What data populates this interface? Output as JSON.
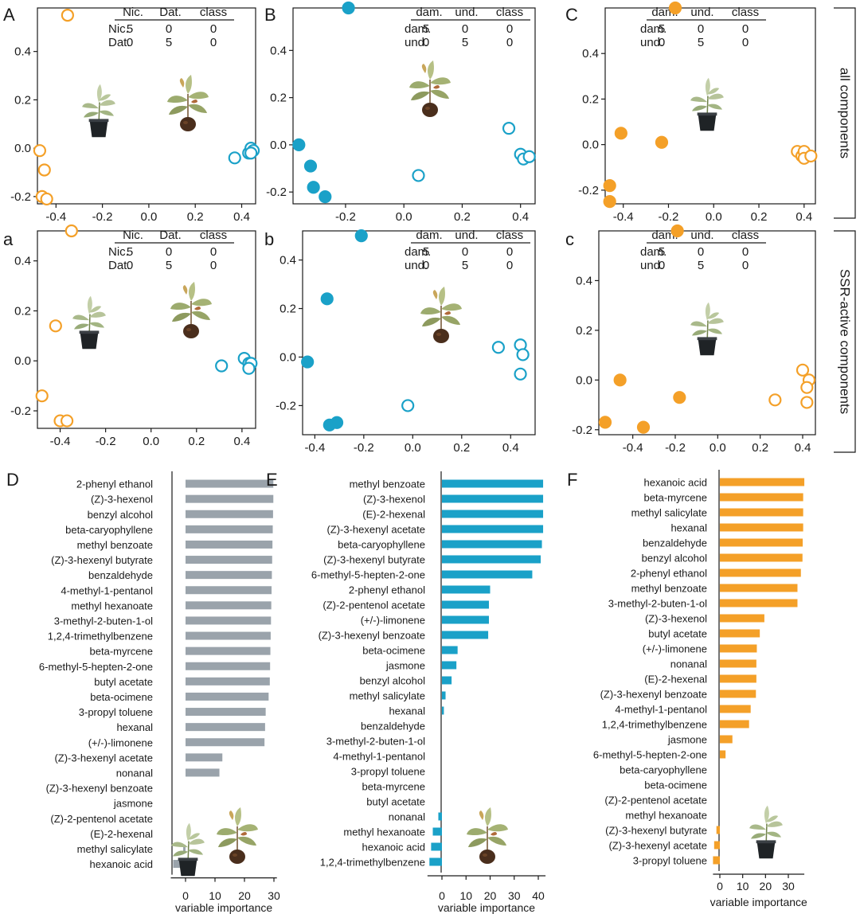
{
  "row_labels": [
    "all components",
    "SSR-active components"
  ],
  "colors": {
    "orange": "#f4a028",
    "blue": "#1aa1c8",
    "gray": "#9aa3ab",
    "axis": "#1a1a1a"
  },
  "chart_data": [
    {
      "id": "A",
      "type": "scatter",
      "letter": "A",
      "xlim": [
        -0.48,
        0.46
      ],
      "ylim": [
        -0.23,
        0.58
      ],
      "xticks": [
        -0.4,
        -0.2,
        0.0,
        0.2,
        0.4
      ],
      "yticks": [
        -0.2,
        0.0,
        0.2,
        0.4
      ],
      "xtick_labels": [
        "-0.4",
        "-0.2",
        "0.0",
        "0.2",
        "0.4"
      ],
      "ytick_labels": [
        "-0.2",
        "0.0",
        "0.2",
        "0.4"
      ],
      "series": [
        {
          "color": "orange",
          "filled": false,
          "points": [
            [
              -0.35,
              0.55
            ],
            [
              -0.47,
              -0.01
            ],
            [
              -0.45,
              -0.09
            ],
            [
              -0.46,
              -0.2
            ],
            [
              -0.44,
              -0.21
            ]
          ]
        },
        {
          "color": "blue",
          "filled": false,
          "points": [
            [
              0.37,
              -0.04
            ],
            [
              0.43,
              -0.02
            ],
            [
              0.44,
              0.0
            ],
            [
              0.45,
              -0.01
            ],
            [
              0.44,
              -0.02
            ]
          ]
        }
      ],
      "confusion": {
        "header": [
          "Nic.",
          "Dat.",
          "class"
        ],
        "rows": [
          [
            "Nic.",
            "5",
            "0",
            "0"
          ],
          [
            "Dat.",
            "0",
            "5",
            "0"
          ]
        ]
      },
      "icons": [
        "potted-plant",
        "damaged-plant"
      ]
    },
    {
      "id": "B",
      "type": "scatter",
      "letter": "B",
      "xlim": [
        -0.38,
        0.45
      ],
      "ylim": [
        -0.25,
        0.58
      ],
      "xticks": [
        -0.2,
        0.0,
        0.2,
        0.4
      ],
      "yticks": [
        -0.2,
        0.0,
        0.2,
        0.4
      ],
      "xtick_labels": [
        "-0.2",
        "0.0",
        "0.2",
        "0.4"
      ],
      "ytick_labels": [
        "-0.2",
        "0.0",
        "0.2",
        "0.4"
      ],
      "series": [
        {
          "color": "blue",
          "filled": true,
          "points": [
            [
              -0.19,
              0.58
            ],
            [
              -0.36,
              0.0
            ],
            [
              -0.32,
              -0.09
            ],
            [
              -0.31,
              -0.18
            ],
            [
              -0.27,
              -0.22
            ]
          ]
        },
        {
          "color": "blue",
          "filled": false,
          "points": [
            [
              0.36,
              0.07
            ],
            [
              0.4,
              -0.04
            ],
            [
              0.41,
              -0.06
            ],
            [
              0.43,
              -0.05
            ],
            [
              0.05,
              -0.13
            ]
          ]
        }
      ],
      "confusion": {
        "header": [
          "dam.",
          "und.",
          "class"
        ],
        "rows": [
          [
            "dam.",
            "5",
            "0",
            "0"
          ],
          [
            "und.",
            "0",
            "5",
            "0"
          ]
        ]
      },
      "icons": [
        "damaged-plant"
      ]
    },
    {
      "id": "C",
      "type": "scatter",
      "letter": "C",
      "xlim": [
        -0.48,
        0.45
      ],
      "ylim": [
        -0.26,
        0.6
      ],
      "xticks": [
        -0.4,
        -0.2,
        0.0,
        0.2,
        0.4
      ],
      "yticks": [
        -0.2,
        0.0,
        0.2,
        0.4
      ],
      "xtick_labels": [
        "-0.4",
        "-0.2",
        "0.0",
        "0.2",
        "0.4"
      ],
      "ytick_labels": [
        "-0.2",
        "0.0",
        "0.2",
        "0.4"
      ],
      "series": [
        {
          "color": "orange",
          "filled": true,
          "points": [
            [
              -0.17,
              0.6
            ],
            [
              -0.41,
              0.05
            ],
            [
              -0.23,
              0.01
            ],
            [
              -0.46,
              -0.18
            ],
            [
              -0.46,
              -0.25
            ]
          ]
        },
        {
          "color": "orange",
          "filled": false,
          "points": [
            [
              0.37,
              -0.03
            ],
            [
              0.39,
              -0.05
            ],
            [
              0.4,
              -0.03
            ],
            [
              0.4,
              -0.06
            ],
            [
              0.43,
              -0.05
            ]
          ]
        }
      ],
      "confusion": {
        "header": [
          "dam.",
          "und.",
          "class"
        ],
        "rows": [
          [
            "dam.",
            "5",
            "0",
            "0"
          ],
          [
            "und.",
            "0",
            "5",
            "0"
          ]
        ]
      },
      "icons": [
        "potted-plant"
      ]
    },
    {
      "id": "a",
      "type": "scatter",
      "letter": "a",
      "xlim": [
        -0.5,
        0.46
      ],
      "ylim": [
        -0.27,
        0.52
      ],
      "xticks": [
        -0.4,
        -0.2,
        0.0,
        0.2,
        0.4
      ],
      "yticks": [
        -0.2,
        0.0,
        0.2,
        0.4
      ],
      "xtick_labels": [
        "-0.4",
        "-0.2",
        "0.0",
        "0.2",
        "0.4"
      ],
      "ytick_labels": [
        "-0.2",
        "0.0",
        "0.2",
        "0.4"
      ],
      "series": [
        {
          "color": "orange",
          "filled": false,
          "points": [
            [
              -0.35,
              0.52
            ],
            [
              -0.42,
              0.14
            ],
            [
              -0.48,
              -0.14
            ],
            [
              -0.4,
              -0.24
            ],
            [
              -0.37,
              -0.24
            ]
          ]
        },
        {
          "color": "blue",
          "filled": false,
          "points": [
            [
              0.31,
              -0.02
            ],
            [
              0.41,
              0.01
            ],
            [
              0.43,
              -0.01
            ],
            [
              0.44,
              -0.01
            ],
            [
              0.43,
              -0.03
            ]
          ]
        }
      ],
      "confusion": {
        "header": [
          "Nic.",
          "Dat.",
          "class"
        ],
        "rows": [
          [
            "Nic.",
            "5",
            "0",
            "0"
          ],
          [
            "Dat.",
            "0",
            "5",
            "0"
          ]
        ]
      },
      "icons": [
        "potted-plant",
        "damaged-plant"
      ]
    },
    {
      "id": "b",
      "type": "scatter",
      "letter": "b",
      "xlim": [
        -0.45,
        0.5
      ],
      "ylim": [
        -0.32,
        0.52
      ],
      "xticks": [
        -0.4,
        -0.2,
        0.0,
        0.2,
        0.4
      ],
      "yticks": [
        -0.2,
        0.0,
        0.2,
        0.4
      ],
      "xtick_labels": [
        "-0.4",
        "-0.2",
        "0.0",
        "0.2",
        "0.4"
      ],
      "ytick_labels": [
        "-0.2",
        "0.0",
        "0.2",
        "0.4"
      ],
      "series": [
        {
          "color": "blue",
          "filled": true,
          "points": [
            [
              -0.21,
              0.5
            ],
            [
              -0.35,
              0.24
            ],
            [
              -0.43,
              -0.02
            ],
            [
              -0.34,
              -0.28
            ],
            [
              -0.31,
              -0.27
            ]
          ]
        },
        {
          "color": "blue",
          "filled": false,
          "points": [
            [
              0.35,
              0.04
            ],
            [
              0.44,
              0.05
            ],
            [
              0.45,
              0.01
            ],
            [
              0.44,
              -0.07
            ],
            [
              -0.02,
              -0.2
            ]
          ]
        }
      ],
      "confusion": {
        "header": [
          "dam.",
          "und.",
          "class"
        ],
        "rows": [
          [
            "dam.",
            "5",
            "0",
            "0"
          ],
          [
            "und.",
            "0",
            "5",
            "0"
          ]
        ]
      },
      "icons": [
        "damaged-plant"
      ]
    },
    {
      "id": "c",
      "type": "scatter",
      "letter": "c",
      "xlim": [
        -0.56,
        0.46
      ],
      "ylim": [
        -0.22,
        0.6
      ],
      "xticks": [
        -0.4,
        -0.2,
        0.0,
        0.2,
        0.4
      ],
      "yticks": [
        -0.2,
        0.0,
        0.2,
        0.4
      ],
      "xtick_labels": [
        "-0.4",
        "-0.2",
        "0.0",
        "0.2",
        "0.4"
      ],
      "ytick_labels": [
        "-0.2",
        "0.0",
        "0.2",
        "0.4"
      ],
      "series": [
        {
          "color": "orange",
          "filled": true,
          "points": [
            [
              -0.19,
              0.6
            ],
            [
              -0.46,
              0.0
            ],
            [
              -0.18,
              -0.07
            ],
            [
              -0.53,
              -0.17
            ],
            [
              -0.35,
              -0.19
            ]
          ]
        },
        {
          "color": "orange",
          "filled": false,
          "points": [
            [
              0.27,
              -0.08
            ],
            [
              0.4,
              0.04
            ],
            [
              0.43,
              0.0
            ],
            [
              0.42,
              -0.03
            ],
            [
              0.42,
              -0.09
            ]
          ]
        }
      ],
      "confusion": {
        "header": [
          "dam.",
          "und.",
          "class"
        ],
        "rows": [
          [
            "dam.",
            "5",
            "0",
            "0"
          ],
          [
            "und.",
            "0",
            "5",
            "0"
          ]
        ]
      },
      "icons": [
        "potted-plant"
      ]
    },
    {
      "id": "D",
      "type": "bar",
      "letter": "D",
      "color": "gray",
      "xlabel": "variable importance",
      "xlim": [
        -5,
        31
      ],
      "xticks": [
        0,
        10,
        20,
        30
      ],
      "xtick_labels": [
        "0",
        "10",
        "20",
        "30"
      ],
      "categories": [
        "2-phenyl ethanol",
        "(Z)-3-hexenol",
        "benzyl alcohol",
        "beta-caryophyllene",
        "methyl benzoate",
        "(Z)-3-hexenyl butyrate",
        "benzaldehyde",
        "4-methyl-1-pentanol",
        "methyl hexanoate",
        "3-methyl-2-buten-1-ol",
        "1,2,4-trimethylbenzene",
        "beta-myrcene",
        "6-methyl-5-hepten-2-one",
        "butyl acetate",
        "beta-ocimene",
        "3-propyl toluene",
        "hexanal",
        "(+/-)-limonene",
        "(Z)-3-hexenyl acetate",
        "nonanal",
        "(Z)-3-hexenyl benzoate",
        "jasmone",
        "(Z)-2-pentenol acetate",
        "(E)-2-hexenal",
        "methyl salicylate",
        "hexanoic acid"
      ],
      "values": [
        29.8,
        29.8,
        29.7,
        29.6,
        29.5,
        29.4,
        29.3,
        29.2,
        29.1,
        29.0,
        28.9,
        28.8,
        28.7,
        28.6,
        28.2,
        27.2,
        27.0,
        26.8,
        12.5,
        11.5,
        0,
        0,
        0,
        0,
        -0.8,
        -4.2
      ],
      "icons": [
        "potted-plant",
        "damaged-plant"
      ]
    },
    {
      "id": "E",
      "type": "bar",
      "letter": "E",
      "color": "blue",
      "xlabel": "variable importance",
      "xlim": [
        -6,
        43
      ],
      "xticks": [
        0,
        10,
        20,
        30,
        40
      ],
      "xtick_labels": [
        "0",
        "10",
        "20",
        "30",
        "40"
      ],
      "categories": [
        "methyl benzoate",
        "(Z)-3-hexenol",
        "(E)-2-hexenal",
        "(Z)-3-hexenyl acetate",
        "beta-caryophyllene",
        "(Z)-3-hexenyl butyrate",
        "6-methyl-5-hepten-2-one",
        "2-phenyl ethanol",
        "(Z)-2-pentenol acetate",
        "(+/-)-limonene",
        "(Z)-3-hexenyl benzoate",
        "beta-ocimene",
        "jasmone",
        "benzyl alcohol",
        "methyl salicylate",
        "hexanal",
        "benzaldehyde",
        "3-methyl-2-buten-1-ol",
        "4-methyl-1-pentanol",
        "3-propyl toluene",
        "beta-myrcene",
        "butyl acetate",
        "nonanal",
        "methyl hexanoate",
        "hexanoic acid",
        "1,2,4-trimethylbenzene"
      ],
      "values": [
        42,
        42,
        42,
        42,
        41.5,
        41,
        37.5,
        20,
        19.5,
        19.5,
        19.2,
        6.5,
        6.0,
        4.0,
        1.5,
        0.8,
        0,
        0,
        0,
        0,
        0,
        0,
        -1.5,
        -3.8,
        -4.5,
        -5.2
      ],
      "icons": [
        "damaged-plant"
      ]
    },
    {
      "id": "F",
      "type": "bar",
      "letter": "F",
      "color": "orange",
      "xlabel": "variable importance",
      "xlim": [
        -3,
        37
      ],
      "xticks": [
        0,
        10,
        20,
        30
      ],
      "xtick_labels": [
        "0",
        "10",
        "20",
        "30"
      ],
      "categories": [
        "hexanoic acid",
        "beta-myrcene",
        "methyl salicylate",
        "hexanal",
        "benzaldehyde",
        "benzyl alcohol",
        "2-phenyl ethanol",
        "methyl benzoate",
        "3-methyl-2-buten-1-ol",
        "(Z)-3-hexenol",
        "butyl acetate",
        "(+/-)-limonene",
        "nonanal",
        "(E)-2-hexenal",
        "(Z)-3-hexenyl benzoate",
        "4-methyl-1-pentanol",
        "1,2,4-trimethylbenzene",
        "jasmone",
        "6-methyl-5-hepten-2-one",
        "beta-caryophyllene",
        "beta-ocimene",
        "(Z)-2-pentenol acetate",
        "methyl hexanoate",
        "(Z)-3-hexenyl butyrate",
        "(Z)-3-hexenyl acetate",
        "3-propyl toluene"
      ],
      "values": [
        37,
        36.5,
        36.5,
        36.5,
        36.3,
        36.2,
        35.5,
        34.0,
        34.0,
        19.5,
        17.5,
        16.2,
        16.0,
        16.0,
        15.8,
        13.5,
        12.8,
        5.5,
        2.5,
        0,
        0,
        0,
        0,
        -1.5,
        -2.5,
        -3.0
      ],
      "icons": [
        "potted-plant"
      ]
    }
  ]
}
